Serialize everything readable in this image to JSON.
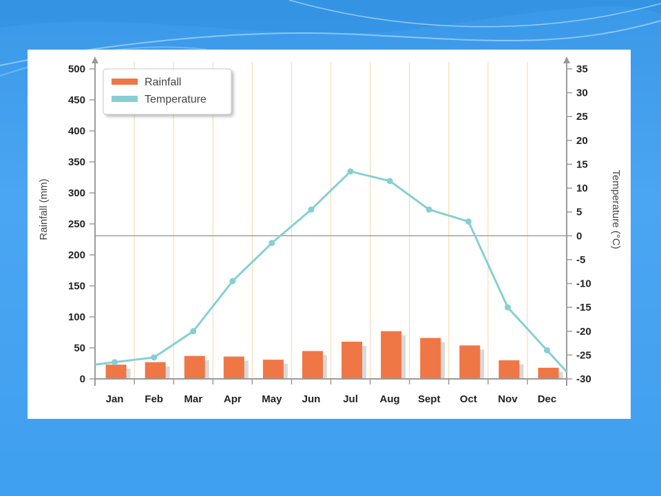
{
  "colors": {
    "rainfall": "#ef7746",
    "rainfall_shadow": "#d9d9d9",
    "temperature": "#86cfd3",
    "grid": "#f7dcb6",
    "axis": "#9a9a9a",
    "background": "#4aa6f2"
  },
  "chart_data": {
    "type": "bar",
    "categories": [
      "Jan",
      "Feb",
      "Mar",
      "Apr",
      "May",
      "Jun",
      "Jul",
      "Aug",
      "Sept",
      "Oct",
      "Nov",
      "Dec"
    ],
    "series": [
      {
        "name": "Rainfall",
        "type": "bar",
        "axis": "left",
        "values": [
          23,
          27,
          37,
          36,
          31,
          45,
          60,
          77,
          66,
          54,
          30,
          18
        ]
      },
      {
        "name": "Temperature",
        "type": "line",
        "axis": "right",
        "values": [
          -26.5,
          -25.5,
          -20,
          -9.5,
          -1.5,
          5.5,
          13.5,
          11.5,
          5.5,
          3,
          -15,
          -24
        ]
      }
    ],
    "ylabel": "Rainfall (mm)",
    "ylim": [
      0,
      500
    ],
    "yticks": [
      "0",
      "50",
      "100",
      "150",
      "200",
      "250",
      "300",
      "350",
      "400",
      "450",
      "500"
    ],
    "y2label": "Temperature (°C)",
    "y2lim": [
      -30,
      35
    ],
    "y2ticks": [
      "-30",
      "-25",
      "-20",
      "-15",
      "-10",
      "-5",
      "0",
      "5",
      "10",
      "15",
      "20",
      "25",
      "30",
      "35"
    ],
    "xlabel": "",
    "legend": {
      "placement": "top-left",
      "entries": [
        "Rainfall",
        "Temperature"
      ]
    },
    "grid": "vertical"
  }
}
